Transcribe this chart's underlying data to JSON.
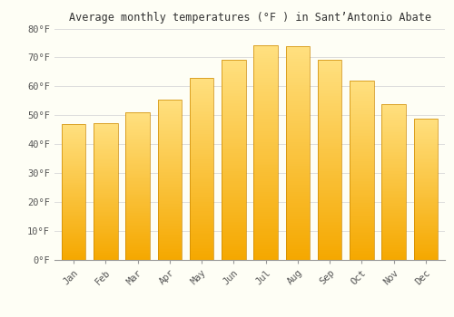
{
  "title": "Average monthly temperatures (°F ) in Sant’Antonio Abate",
  "months": [
    "Jan",
    "Feb",
    "Mar",
    "Apr",
    "May",
    "Jun",
    "Jul",
    "Aug",
    "Sep",
    "Oct",
    "Nov",
    "Dec"
  ],
  "values": [
    47.0,
    47.3,
    51.0,
    55.4,
    63.0,
    69.3,
    74.1,
    73.9,
    69.3,
    61.9,
    54.0,
    49.0
  ],
  "ylim": [
    0,
    80
  ],
  "yticks": [
    0,
    10,
    20,
    30,
    40,
    50,
    60,
    70,
    80
  ],
  "ytick_labels": [
    "0°F",
    "10°F",
    "20°F",
    "30°F",
    "40°F",
    "50°F",
    "60°F",
    "70°F",
    "80°F"
  ],
  "bar_color_bottom": "#F5A800",
  "bar_color_top": "#FFE080",
  "bar_edge_color": "#CC8800",
  "background_color": "#FEFEF5",
  "grid_color": "#DDDDDD",
  "title_fontsize": 8.5,
  "tick_fontsize": 7.5,
  "bar_width": 0.75
}
